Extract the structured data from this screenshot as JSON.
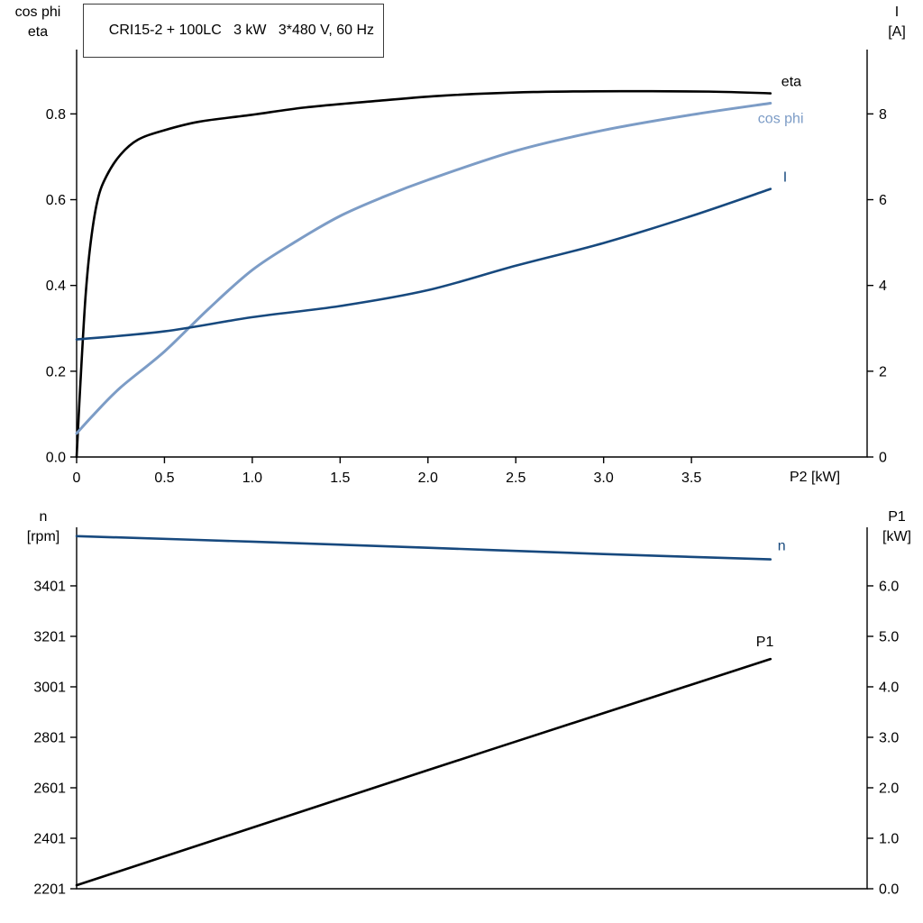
{
  "colors": {
    "background": "#ffffff",
    "axis": "#000000",
    "black_curve": "#000000",
    "light_blue": "#7C9CC6",
    "dark_blue": "#17497E",
    "title_border": "#3c3c3c"
  },
  "chart_data": [
    {
      "type": "line",
      "title": "CRI15-2 + 100LC   3 kW   3*480 V, 60 Hz",
      "xlabel": "P2 [kW]",
      "grid": false,
      "legend_position": "inline-end-labels",
      "xlim": [
        0,
        4.5
      ],
      "x_ticks": {
        "values": [
          0,
          0.5,
          1,
          1.5,
          2,
          2.5,
          3,
          3.5
        ],
        "labels": [
          "0",
          "0.5",
          "1.0",
          "1.5",
          "2.0",
          "2.5",
          "3.0",
          "3.5"
        ]
      },
      "left_axis": {
        "label_lines": [
          "cos phi",
          "eta"
        ],
        "lim": [
          0,
          0.95
        ],
        "ticks": {
          "values": [
            0,
            0.2,
            0.4,
            0.6,
            0.8
          ],
          "labels": [
            "0.0",
            "0.2",
            "0.4",
            "0.6",
            "0.8"
          ]
        }
      },
      "right_axis": {
        "label_lines": [
          "I",
          "[A]"
        ],
        "lim": [
          0,
          9.5
        ],
        "ticks": {
          "values": [
            0,
            2,
            4,
            6,
            8
          ],
          "labels": [
            "0",
            "2",
            "4",
            "6",
            "8"
          ]
        }
      },
      "series": [
        {
          "name": "eta",
          "axis": "left",
          "color": "#000000",
          "width": 2.6,
          "label_offset": [
            12,
            -8
          ],
          "x": [
            0,
            0.02,
            0.05,
            0.08,
            0.12,
            0.17,
            0.25,
            0.35,
            0.5,
            0.7,
            1.0,
            1.3,
            1.7,
            2.1,
            2.6,
            3.1,
            3.6,
            3.95
          ],
          "y": [
            0,
            0.16,
            0.37,
            0.5,
            0.6,
            0.655,
            0.705,
            0.74,
            0.762,
            0.782,
            0.798,
            0.815,
            0.83,
            0.843,
            0.851,
            0.853,
            0.852,
            0.848
          ]
        },
        {
          "name": "cos phi",
          "axis": "left",
          "color": "#7C9CC6",
          "width": 3,
          "label_offset": [
            -14,
            22
          ],
          "x": [
            0,
            0.1,
            0.25,
            0.5,
            0.75,
            1.0,
            1.25,
            1.5,
            1.75,
            2.0,
            2.5,
            3.0,
            3.5,
            3.95
          ],
          "y": [
            0.055,
            0.1,
            0.162,
            0.246,
            0.345,
            0.436,
            0.503,
            0.562,
            0.607,
            0.646,
            0.714,
            0.762,
            0.798,
            0.825
          ]
        },
        {
          "name": "I",
          "axis": "right",
          "color": "#17497E",
          "width": 2.6,
          "label_offset": [
            14,
            -8
          ],
          "x": [
            0,
            0.5,
            1.0,
            1.5,
            2.0,
            2.5,
            3.0,
            3.5,
            3.95
          ],
          "y": [
            2.74,
            2.93,
            3.26,
            3.52,
            3.89,
            4.46,
            4.99,
            5.62,
            6.25
          ]
        }
      ]
    },
    {
      "type": "line",
      "title": "",
      "xlabel": "",
      "grid": false,
      "legend_position": "inline-end-labels",
      "xlim": [
        0,
        4.5
      ],
      "x_ticks": {
        "values": [],
        "labels": []
      },
      "left_axis": {
        "label_lines": [
          "n",
          "[rpm]"
        ],
        "lim": [
          2201,
          3633
        ],
        "ticks": {
          "values": [
            2201,
            2401,
            2601,
            2801,
            3001,
            3201,
            3401
          ],
          "labels": [
            "2201",
            "2401",
            "2601",
            "2801",
            "3001",
            "3201",
            "3401"
          ]
        }
      },
      "right_axis": {
        "label_lines": [
          "P1",
          "[kW]"
        ],
        "lim": [
          0,
          7.16
        ],
        "ticks": {
          "values": [
            0,
            1,
            2,
            3,
            4,
            5,
            6
          ],
          "labels": [
            "0.0",
            "1.0",
            "2.0",
            "3.0",
            "4.0",
            "5.0",
            "6.0"
          ]
        }
      },
      "series": [
        {
          "name": "n",
          "axis": "left",
          "color": "#17497E",
          "width": 2.6,
          "label_offset": [
            8,
            -10
          ],
          "x": [
            0,
            1,
            2,
            3,
            3.95
          ],
          "y": [
            3598,
            3576,
            3552,
            3527,
            3506
          ]
        },
        {
          "name": "P1",
          "axis": "right",
          "color": "#000000",
          "width": 2.6,
          "label_offset": [
            -16,
            -14
          ],
          "x": [
            0,
            1,
            2,
            3,
            3.95
          ],
          "y": [
            0.07,
            1.21,
            2.35,
            3.48,
            4.55
          ]
        }
      ]
    }
  ]
}
